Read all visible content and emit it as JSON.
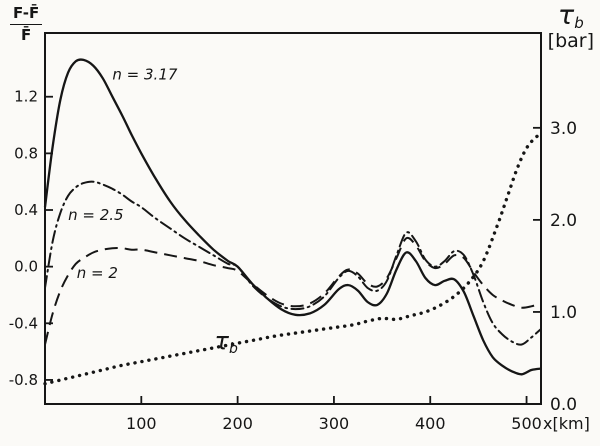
{
  "figure": {
    "bg": "#fbfaf7",
    "ink": "#161616",
    "left_axis_label": {
      "numerator": "F-F̄",
      "denominator": "F̄"
    },
    "right_axis_label": {
      "symbol": "τ",
      "sub": "b",
      "unit": "[bar]"
    },
    "x_axis_suffix": "x[km]"
  },
  "chart_data": {
    "type": "line",
    "title": "",
    "xlabel": "x[km]",
    "ylabel_left": "(F-F̄)/F̄",
    "ylabel_right": "τb [bar]",
    "xlim": [
      0,
      515
    ],
    "left_ylim": [
      -0.97,
      1.65
    ],
    "right_ylim": [
      0,
      4.03
    ],
    "grid": false,
    "legend_position": "inline-annotations",
    "x_ticks": [
      {
        "v": 100,
        "label": "100"
      },
      {
        "v": 200,
        "label": "200"
      },
      {
        "v": 300,
        "label": "300"
      },
      {
        "v": 400,
        "label": "400"
      },
      {
        "v": 500,
        "label": "500"
      }
    ],
    "left_y_ticks": [
      {
        "v": 1.2,
        "label": "1.2"
      },
      {
        "v": 0.8,
        "label": "0.8"
      },
      {
        "v": 0.4,
        "label": "0.4"
      },
      {
        "v": 0.0,
        "label": "0.0"
      },
      {
        "v": -0.4,
        "label": "-0.4"
      },
      {
        "v": -0.8,
        "label": "-0.8"
      }
    ],
    "right_y_ticks": [
      {
        "v": 3.0,
        "label": "3.0"
      },
      {
        "v": 2.0,
        "label": "2.0"
      },
      {
        "v": 1.0,
        "label": "1.0"
      },
      {
        "v": 0.0,
        "label": "0.0"
      }
    ],
    "series": [
      {
        "name": "n = 3.17",
        "style": "solid",
        "axis": "left",
        "width": 2.3,
        "x": [
          0,
          8,
          16,
          24,
          32,
          40,
          50,
          60,
          70,
          80,
          90,
          100,
          115,
          130,
          145,
          160,
          175,
          190,
          200,
          215,
          230,
          245,
          260,
          275,
          290,
          305,
          315,
          325,
          335,
          345,
          355,
          365,
          375,
          385,
          395,
          405,
          415,
          425,
          435,
          445,
          455,
          465,
          475,
          485,
          495,
          505,
          515
        ],
        "y": [
          0.42,
          0.85,
          1.18,
          1.37,
          1.45,
          1.46,
          1.42,
          1.33,
          1.2,
          1.07,
          0.93,
          0.8,
          0.62,
          0.46,
          0.33,
          0.22,
          0.12,
          0.04,
          0.0,
          -0.12,
          -0.22,
          -0.3,
          -0.34,
          -0.33,
          -0.27,
          -0.16,
          -0.13,
          -0.17,
          -0.25,
          -0.27,
          -0.19,
          -0.02,
          0.1,
          0.04,
          -0.08,
          -0.13,
          -0.1,
          -0.09,
          -0.18,
          -0.35,
          -0.52,
          -0.64,
          -0.7,
          -0.74,
          -0.76,
          -0.73,
          -0.72
        ]
      },
      {
        "name": "n = 2.5",
        "style": "dashdot",
        "axis": "left",
        "width": 2.0,
        "x": [
          0,
          8,
          16,
          24,
          32,
          40,
          50,
          60,
          70,
          80,
          90,
          100,
          115,
          130,
          145,
          160,
          175,
          190,
          200,
          215,
          230,
          245,
          260,
          275,
          290,
          305,
          315,
          325,
          335,
          345,
          355,
          365,
          375,
          385,
          395,
          405,
          415,
          425,
          435,
          445,
          455,
          465,
          475,
          485,
          495,
          505,
          515
        ],
        "y": [
          -0.15,
          0.18,
          0.38,
          0.5,
          0.56,
          0.59,
          0.6,
          0.58,
          0.55,
          0.51,
          0.46,
          0.42,
          0.34,
          0.27,
          0.2,
          0.14,
          0.08,
          0.02,
          0.0,
          -0.13,
          -0.22,
          -0.28,
          -0.3,
          -0.28,
          -0.21,
          -0.08,
          -0.03,
          -0.07,
          -0.15,
          -0.17,
          -0.1,
          0.08,
          0.24,
          0.18,
          0.05,
          0.0,
          0.04,
          0.11,
          0.08,
          -0.06,
          -0.25,
          -0.4,
          -0.48,
          -0.53,
          -0.55,
          -0.5,
          -0.44
        ]
      },
      {
        "name": "n = 2",
        "style": "dashed",
        "axis": "left",
        "width": 2.0,
        "x": [
          0,
          8,
          16,
          24,
          32,
          40,
          50,
          60,
          70,
          80,
          90,
          100,
          115,
          130,
          145,
          160,
          175,
          190,
          200,
          215,
          230,
          245,
          260,
          275,
          290,
          305,
          315,
          325,
          335,
          345,
          355,
          365,
          375,
          385,
          395,
          405,
          415,
          425,
          435,
          445,
          455,
          465,
          475,
          485,
          495,
          505,
          515
        ],
        "y": [
          -0.55,
          -0.33,
          -0.17,
          -0.06,
          0.02,
          0.06,
          0.1,
          0.12,
          0.13,
          0.13,
          0.12,
          0.12,
          0.1,
          0.08,
          0.06,
          0.04,
          0.01,
          -0.01,
          -0.03,
          -0.12,
          -0.2,
          -0.26,
          -0.28,
          -0.26,
          -0.19,
          -0.07,
          -0.02,
          -0.05,
          -0.12,
          -0.14,
          -0.08,
          0.06,
          0.2,
          0.15,
          0.04,
          -0.01,
          0.02,
          0.08,
          0.06,
          -0.04,
          -0.13,
          -0.2,
          -0.24,
          -0.27,
          -0.29,
          -0.28,
          -0.26
        ]
      },
      {
        "name": "τb",
        "style": "dotted",
        "axis": "right",
        "width": 3.4,
        "x": [
          0,
          20,
          40,
          60,
          80,
          100,
          120,
          140,
          160,
          180,
          200,
          220,
          240,
          260,
          280,
          300,
          320,
          335,
          350,
          365,
          380,
          395,
          410,
          425,
          440,
          455,
          470,
          480,
          490,
          500,
          510,
          515
        ],
        "y": [
          0.22,
          0.27,
          0.32,
          0.37,
          0.42,
          0.46,
          0.5,
          0.54,
          0.58,
          0.62,
          0.66,
          0.7,
          0.74,
          0.77,
          0.8,
          0.83,
          0.86,
          0.9,
          0.93,
          0.92,
          0.96,
          1.0,
          1.07,
          1.17,
          1.32,
          1.55,
          1.95,
          2.25,
          2.55,
          2.78,
          2.9,
          2.92
        ]
      }
    ],
    "annotations": [
      {
        "text": "n = 3.17",
        "x": 70,
        "y": 1.32,
        "size": 15,
        "sub": ""
      },
      {
        "text": "n = 2.5",
        "x": 24,
        "y": 0.33,
        "size": 15,
        "sub": ""
      },
      {
        "text": "n = 2",
        "x": 33,
        "y": -0.08,
        "size": 15,
        "sub": ""
      },
      {
        "text": "τ",
        "x": 176,
        "y": -0.58,
        "size": 24,
        "sub": "b"
      }
    ]
  }
}
